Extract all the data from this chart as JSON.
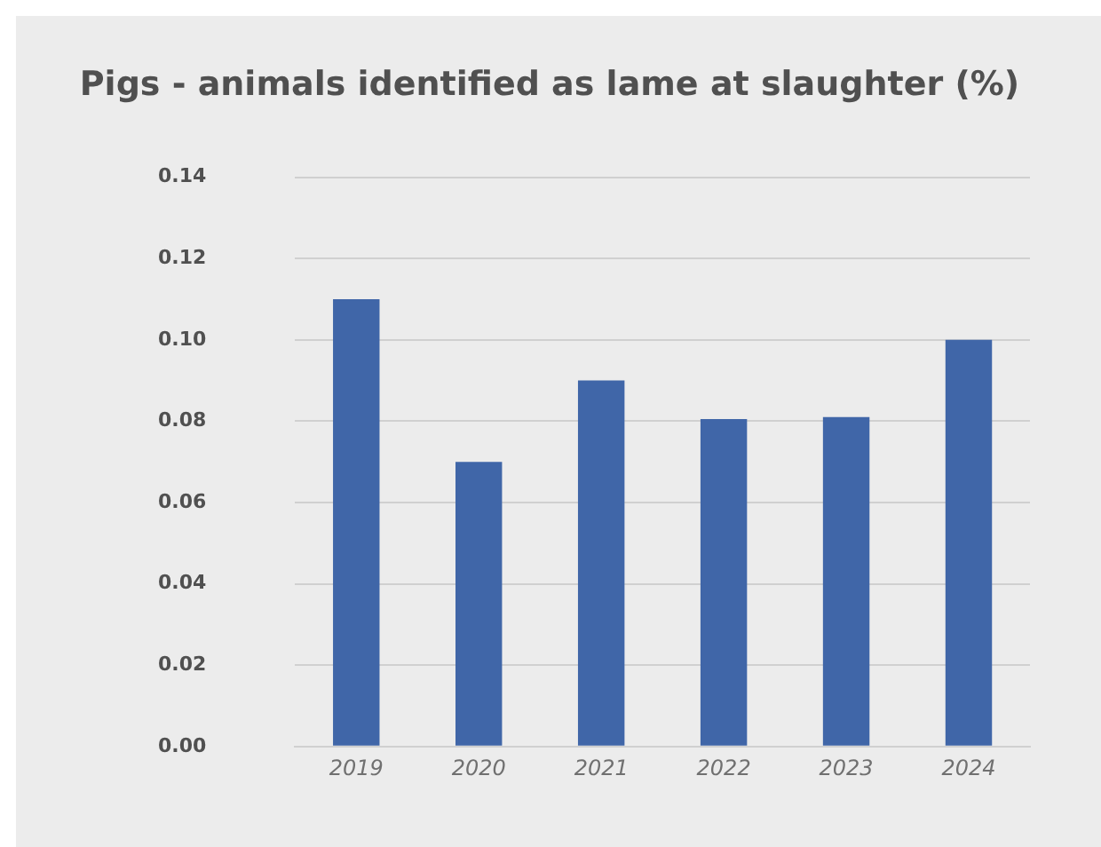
{
  "chart_data": {
    "type": "bar",
    "title": "Pigs - animals identified as lame at slaughter (%)",
    "categories": [
      "2019",
      "2020",
      "2021",
      "2022",
      "2023",
      "2024"
    ],
    "values": [
      0.11,
      0.07,
      0.09,
      0.0805,
      0.081,
      0.1
    ],
    "color": "#4066a8",
    "ylim": [
      0,
      0.14
    ],
    "yticks": [
      {
        "value": 0,
        "label": "0.00"
      },
      {
        "value": 0.02,
        "label": "0.02"
      },
      {
        "value": 0.04,
        "label": "0.04"
      },
      {
        "value": 0.06,
        "label": "0.06"
      },
      {
        "value": 0.08,
        "label": "0.08"
      },
      {
        "value": 0.1,
        "label": "0.10"
      },
      {
        "value": 0.12,
        "label": "0.12"
      },
      {
        "value": 0.14,
        "label": "0.14"
      }
    ],
    "grid": "y"
  }
}
